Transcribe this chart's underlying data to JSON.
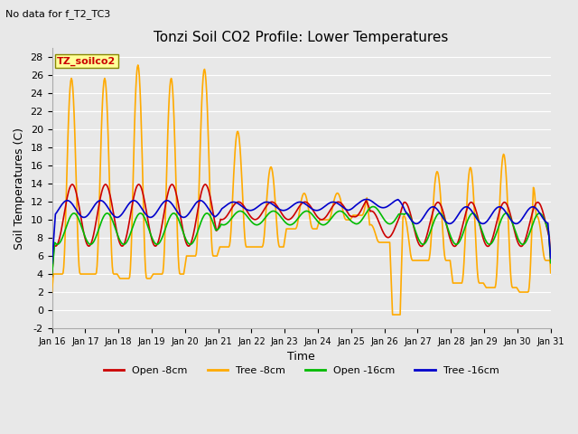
{
  "title": "Tonzi Soil CO2 Profile: Lower Temperatures",
  "subtitle": "No data for f_T2_TC3",
  "xlabel": "Time",
  "ylabel": "Soil Temperatures (C)",
  "ylim": [
    -2,
    29
  ],
  "yticks": [
    -2,
    0,
    2,
    4,
    6,
    8,
    10,
    12,
    14,
    16,
    18,
    20,
    22,
    24,
    26,
    28
  ],
  "xtick_labels": [
    "Jan 16",
    "Jan 17",
    "Jan 18",
    "Jan 19",
    "Jan 20",
    "Jan 21",
    "Jan 22",
    "Jan 23",
    "Jan 24",
    "Jan 25",
    "Jan 26",
    "Jan 27",
    "Jan 28",
    "Jan 29",
    "Jan 30",
    "Jan 31"
  ],
  "bg_color": "#e8e8e8",
  "plot_bg_color": "#e8e8e8",
  "grid_color": "#ffffff",
  "legend_box_color": "#ffff99",
  "legend_box_text": "TZ_soilco2",
  "series": {
    "open_8cm": {
      "color": "#cc0000",
      "label": "Open -8cm",
      "linewidth": 1.2
    },
    "tree_8cm": {
      "color": "#ffaa00",
      "label": "Tree -8cm",
      "linewidth": 1.2
    },
    "open_16cm": {
      "color": "#00bb00",
      "label": "Open -16cm",
      "linewidth": 1.2
    },
    "tree_16cm": {
      "color": "#0000cc",
      "label": "Tree -16cm",
      "linewidth": 1.2
    }
  }
}
